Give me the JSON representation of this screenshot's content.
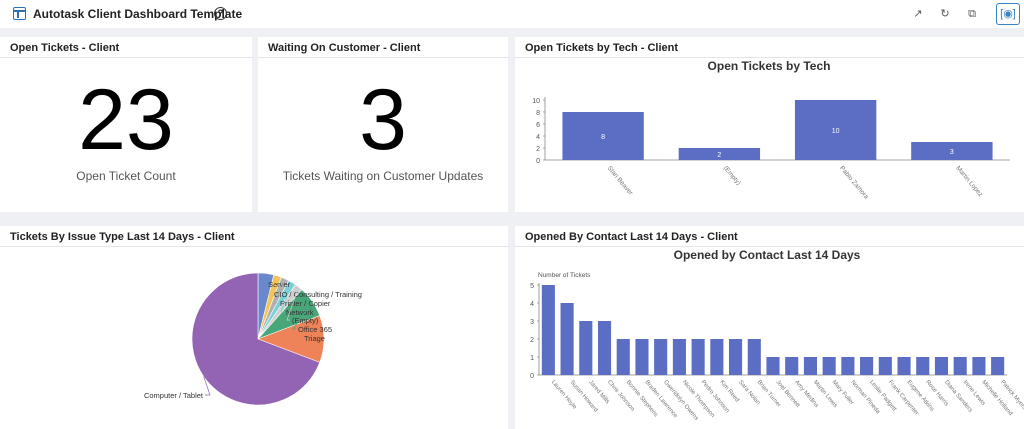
{
  "header": {
    "title": "Autotask Client Dashboard Template",
    "help_icon": "help-circle-icon",
    "actions": [
      "share-icon",
      "refresh-icon",
      "copy-icon",
      "focus-icon"
    ]
  },
  "widgets": {
    "open_tickets": {
      "title": "Open Tickets - Client",
      "value": "23",
      "caption": "Open Ticket Count"
    },
    "waiting": {
      "title": "Waiting On Customer - Client",
      "value": "3",
      "caption": "Tickets Waiting on Customer Updates"
    },
    "by_tech": {
      "title": "Open Tickets by Tech - Client"
    },
    "issue_type": {
      "title": "Tickets By Issue Type Last 14 Days - Client"
    },
    "by_contact": {
      "title": "Opened By Contact Last 14 Days - Client"
    }
  },
  "colors": {
    "bar": "#5b6ec4",
    "pie_main": "#9464b4",
    "pie_orange": "#ee8359",
    "pie_green": "#49a679",
    "pie_blue": "#6b88cc"
  },
  "chart_data": [
    {
      "type": "bar",
      "title": "Open Tickets by Tech",
      "categories": [
        "Stan Beaver",
        "(Empty)",
        "Pablo Zamora",
        "Martin Lopez"
      ],
      "values": [
        8,
        2,
        10,
        3
      ],
      "ylim": [
        0,
        10
      ],
      "yticks": [
        0,
        2,
        4,
        6,
        8,
        10
      ],
      "xlabel": "",
      "ylabel": ""
    },
    {
      "type": "pie",
      "title": "",
      "labels": [
        "Server",
        "CIO / Consulting / Training",
        "Printer / Copier",
        "Network",
        "(Empty)",
        "Office 365",
        "Triage",
        "Computer / Tablet"
      ],
      "values": [
        1,
        0.5,
        0.5,
        0.5,
        0.5,
        2,
        3,
        18
      ]
    },
    {
      "type": "bar",
      "title": "Opened by Contact Last 14 Days",
      "ylabel": "Number of Tickets",
      "categories": [
        "Lauren Hoyle",
        "Susan Howard",
        "Jared Mills",
        "Chris Johnson",
        "Bonnie Stephens",
        "Braden Lawrence",
        "Gwendolyn Owens",
        "Nicole Thompson",
        "Pedro Johnson",
        "Kim Reed",
        "Sara Nolan",
        "Brian Turner",
        "Joel Bennett",
        "Amy Medina",
        "Martin Lewis",
        "Mary Fuller",
        "Norman Pineda",
        "Leslie Padgett",
        "Frank Carpenter",
        "Eugene Atkins",
        "Rose Harris",
        "Diana Sanders",
        "Irene Lewis",
        "Michelle Holland",
        "Patrick Myers"
      ],
      "values": [
        5,
        4,
        3,
        3,
        2,
        2,
        2,
        2,
        2,
        2,
        2,
        2,
        1,
        1,
        1,
        1,
        1,
        1,
        1,
        1,
        1,
        1,
        1,
        1,
        1
      ],
      "ylim": [
        0,
        5
      ],
      "yticks": [
        0,
        1,
        2,
        3,
        4,
        5
      ]
    }
  ]
}
